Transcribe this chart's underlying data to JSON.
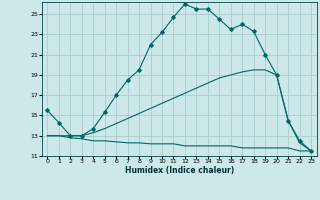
{
  "xlabel": "Humidex (Indice chaleur)",
  "background_color": "#cce8e8",
  "grid_color": "#aacccc",
  "line_color": "#006666",
  "xlim": [
    -0.5,
    23.5
  ],
  "ylim": [
    11,
    26.2
  ],
  "xticks": [
    0,
    1,
    2,
    3,
    4,
    5,
    6,
    7,
    8,
    9,
    10,
    11,
    12,
    13,
    14,
    15,
    16,
    17,
    18,
    19,
    20,
    21,
    22,
    23
  ],
  "yticks": [
    11,
    13,
    15,
    17,
    19,
    21,
    23,
    25
  ],
  "series1_x": [
    0,
    1,
    2,
    3,
    4,
    5,
    6,
    7,
    8,
    9,
    10,
    11,
    12,
    13,
    14,
    15,
    16,
    17,
    18,
    19,
    20,
    21,
    22,
    23
  ],
  "series1_y": [
    15.5,
    14.3,
    13.0,
    13.0,
    13.7,
    15.3,
    17.0,
    18.5,
    19.5,
    22.0,
    23.2,
    24.7,
    26.0,
    25.5,
    25.5,
    24.5,
    23.5,
    24.0,
    23.3,
    21.0,
    19.0,
    14.5,
    12.5,
    11.5
  ],
  "series2_x": [
    0,
    1,
    2,
    3,
    4,
    5,
    6,
    7,
    8,
    9,
    10,
    11,
    12,
    13,
    14,
    15,
    16,
    17,
    18,
    19,
    20,
    21,
    22,
    23
  ],
  "series2_y": [
    13.0,
    13.0,
    12.8,
    12.7,
    12.5,
    12.5,
    12.4,
    12.3,
    12.3,
    12.2,
    12.2,
    12.2,
    12.0,
    12.0,
    12.0,
    12.0,
    12.0,
    11.8,
    11.8,
    11.8,
    11.8,
    11.8,
    11.5,
    11.5
  ],
  "series3_x": [
    0,
    1,
    2,
    3,
    4,
    5,
    6,
    7,
    8,
    9,
    10,
    11,
    12,
    13,
    14,
    15,
    16,
    17,
    18,
    19,
    20,
    21,
    22,
    23
  ],
  "series3_y": [
    13.0,
    13.0,
    13.0,
    13.0,
    13.3,
    13.7,
    14.2,
    14.7,
    15.2,
    15.7,
    16.2,
    16.7,
    17.2,
    17.7,
    18.2,
    18.7,
    19.0,
    19.3,
    19.5,
    19.5,
    19.0,
    14.5,
    12.3,
    11.5
  ]
}
